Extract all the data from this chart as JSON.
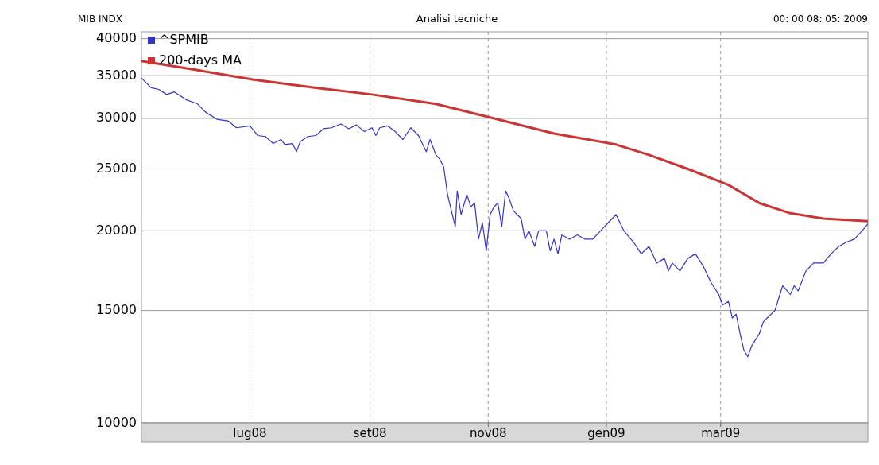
{
  "chart_data": {
    "type": "line",
    "title": "Analisi tecniche",
    "subtitle": "MIB INDX",
    "annotations": [
      "00: 00 08: 05: 2009"
    ],
    "log": "y",
    "grid": true,
    "legend": "top left",
    "marker": "none",
    "line_style": "solid",
    "ylim": [
      10000,
      41000
    ],
    "yticks": [
      10000,
      15000,
      20000,
      25000,
      30000,
      35000,
      40000
    ],
    "xlim": [
      "2008-05-06",
      "2009-05-16"
    ],
    "xticks": [
      {
        "value": "2008-07-01",
        "label": "lug08"
      },
      {
        "value": "2008-09-01",
        "label": "set08"
      },
      {
        "value": "2008-11-01",
        "label": "nov08"
      },
      {
        "value": "2009-01-01",
        "label": "gen09"
      },
      {
        "value": "2009-03-01",
        "label": "mar09"
      }
    ],
    "series": [
      {
        "name": "^SPMIB",
        "color": "#3333cc",
        "x": [
          "2008-05-06",
          "2008-05-11",
          "2008-05-15",
          "2008-05-19",
          "2008-05-23",
          "2008-05-29",
          "2008-06-04",
          "2008-06-08",
          "2008-06-14",
          "2008-06-20",
          "2008-06-24",
          "2008-07-01",
          "2008-07-05",
          "2008-07-09",
          "2008-07-13",
          "2008-07-17",
          "2008-07-19",
          "2008-07-23",
          "2008-07-25",
          "2008-07-27",
          "2008-07-31",
          "2008-08-04",
          "2008-08-08",
          "2008-08-12",
          "2008-08-17",
          "2008-08-21",
          "2008-08-25",
          "2008-08-29",
          "2008-09-02",
          "2008-09-04",
          "2008-09-06",
          "2008-09-10",
          "2008-09-14",
          "2008-09-18",
          "2008-09-22",
          "2008-09-26",
          "2008-09-30",
          "2008-10-02",
          "2008-10-05",
          "2008-10-07",
          "2008-10-09",
          "2008-10-11",
          "2008-10-13",
          "2008-10-15",
          "2008-10-16",
          "2008-10-18",
          "2008-10-21",
          "2008-10-23",
          "2008-10-25",
          "2008-10-27",
          "2008-10-29",
          "2008-10-31",
          "2008-11-02",
          "2008-11-04",
          "2008-11-06",
          "2008-11-08",
          "2008-11-10",
          "2008-11-12",
          "2008-11-14",
          "2008-11-18",
          "2008-11-20",
          "2008-11-22",
          "2008-11-25",
          "2008-11-27",
          "2008-12-01",
          "2008-12-03",
          "2008-12-05",
          "2008-12-07",
          "2008-12-09",
          "2008-12-13",
          "2008-12-17",
          "2008-12-21",
          "2008-12-25",
          "2008-12-29",
          "2009-01-02",
          "2009-01-06",
          "2009-01-10",
          "2009-01-15",
          "2009-01-19",
          "2009-01-23",
          "2009-01-27",
          "2009-01-31",
          "2009-02-02",
          "2009-02-04",
          "2009-02-08",
          "2009-02-12",
          "2009-02-16",
          "2009-02-20",
          "2009-02-24",
          "2009-02-28",
          "2009-03-02",
          "2009-03-05",
          "2009-03-07",
          "2009-03-09",
          "2009-03-11",
          "2009-03-13",
          "2009-03-15",
          "2009-03-17",
          "2009-03-21",
          "2009-03-23",
          "2009-03-25",
          "2009-03-29",
          "2009-04-02",
          "2009-04-06",
          "2009-04-08",
          "2009-04-10",
          "2009-04-14",
          "2009-04-18",
          "2009-04-23",
          "2009-04-27",
          "2009-05-01",
          "2009-05-05",
          "2009-05-09",
          "2009-05-13",
          "2009-05-16"
        ],
        "values": [
          34700,
          33500,
          33300,
          32700,
          33000,
          32100,
          31600,
          30700,
          29900,
          29700,
          29000,
          29200,
          28200,
          28100,
          27400,
          27800,
          27300,
          27400,
          26600,
          27600,
          28100,
          28200,
          28900,
          29000,
          29400,
          28900,
          29300,
          28600,
          29000,
          28200,
          29000,
          29200,
          28600,
          27800,
          29000,
          28200,
          26600,
          27800,
          26300,
          25900,
          25200,
          22800,
          21500,
          20300,
          23100,
          21200,
          22800,
          21800,
          22100,
          19400,
          20600,
          18600,
          21200,
          21800,
          22100,
          20300,
          23100,
          22400,
          21500,
          20900,
          19400,
          20000,
          18900,
          20000,
          20000,
          18600,
          19400,
          18400,
          19700,
          19400,
          19700,
          19400,
          19400,
          20000,
          20600,
          21200,
          20000,
          19200,
          18400,
          18900,
          17800,
          18100,
          17300,
          17800,
          17300,
          18100,
          18400,
          17600,
          16600,
          15900,
          15300,
          15500,
          14600,
          14800,
          13800,
          13000,
          12700,
          13200,
          13800,
          14400,
          14600,
          15000,
          16400,
          15900,
          16400,
          16100,
          17300,
          17800,
          17800,
          18400,
          18900,
          19200,
          19400,
          20000,
          20500
        ]
      },
      {
        "name": "200-days MA",
        "color": "#cc3333",
        "x": [
          "2008-05-06",
          "2008-06-04",
          "2008-07-03",
          "2008-08-04",
          "2008-09-02",
          "2008-10-05",
          "2008-11-02",
          "2008-12-05",
          "2009-01-06",
          "2009-01-23",
          "2009-02-12",
          "2009-03-05",
          "2009-03-21",
          "2009-04-06",
          "2009-04-23",
          "2009-05-16"
        ],
        "values": [
          36900,
          35700,
          34500,
          33500,
          32700,
          31600,
          30100,
          28400,
          27300,
          26300,
          25000,
          23600,
          22100,
          21300,
          20900,
          20700
        ]
      }
    ]
  }
}
